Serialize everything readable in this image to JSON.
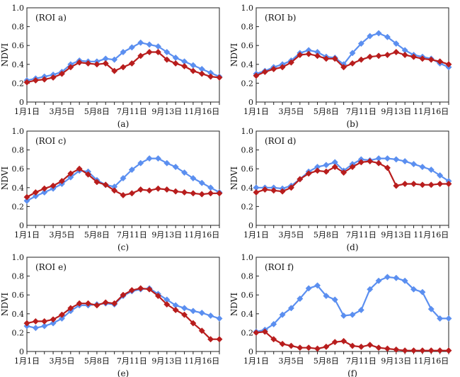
{
  "chart_data": [
    {
      "type": "line",
      "panel": "(ROI a)",
      "caption": "(a)",
      "ylabel": "NDVI",
      "ylim": [
        0,
        1.0
      ],
      "yticks": [
        "0",
        "0.2",
        "0.4",
        "0.6",
        "0.8",
        "1.0"
      ],
      "xlim": [
        1,
        23
      ],
      "xtick_labels": [
        "1月1日",
        "3月5日",
        "5月8日",
        "7月11日",
        "9月13日",
        "11月16日"
      ],
      "xtick_positions": [
        1,
        5,
        9,
        13,
        17,
        21
      ],
      "series": [
        {
          "color": "#5b8ff0",
          "x": [
            1,
            2,
            3,
            4,
            5,
            6,
            7,
            8,
            9,
            10,
            11,
            12,
            13,
            14,
            15,
            16,
            17,
            18,
            19,
            20,
            21,
            22,
            23
          ],
          "values": [
            0.23,
            0.25,
            0.27,
            0.29,
            0.32,
            0.4,
            0.44,
            0.43,
            0.43,
            0.46,
            0.45,
            0.53,
            0.58,
            0.63,
            0.61,
            0.59,
            0.53,
            0.47,
            0.43,
            0.39,
            0.35,
            0.31,
            0.27
          ]
        },
        {
          "color": "#b81d1d",
          "x": [
            1,
            2,
            3,
            4,
            5,
            6,
            7,
            8,
            9,
            10,
            11,
            12,
            13,
            14,
            15,
            16,
            17,
            18,
            19,
            20,
            21,
            22,
            23
          ],
          "values": [
            0.21,
            0.23,
            0.24,
            0.26,
            0.3,
            0.37,
            0.42,
            0.41,
            0.4,
            0.41,
            0.33,
            0.37,
            0.41,
            0.49,
            0.53,
            0.53,
            0.45,
            0.41,
            0.38,
            0.33,
            0.3,
            0.27,
            0.26
          ]
        }
      ]
    },
    {
      "type": "line",
      "panel": "(ROI b)",
      "caption": "(b)",
      "ylabel": "NDVI",
      "ylim": [
        0,
        1.0
      ],
      "yticks": [
        "0",
        "0.2",
        "0.4",
        "0.6",
        "0.8",
        "1.0"
      ],
      "xlim": [
        1,
        23
      ],
      "xtick_labels": [
        "1月1日",
        "3月5日",
        "5月8日",
        "7月11日",
        "9月13日",
        "11月16日"
      ],
      "xtick_positions": [
        1,
        5,
        9,
        13,
        17,
        21
      ],
      "series": [
        {
          "color": "#5b8ff0",
          "x": [
            1,
            2,
            3,
            4,
            5,
            6,
            7,
            8,
            9,
            10,
            11,
            12,
            13,
            14,
            15,
            16,
            17,
            18,
            19,
            20,
            21,
            22,
            23
          ],
          "values": [
            0.3,
            0.33,
            0.37,
            0.4,
            0.44,
            0.52,
            0.55,
            0.53,
            0.48,
            0.47,
            0.4,
            0.52,
            0.62,
            0.7,
            0.73,
            0.69,
            0.62,
            0.55,
            0.5,
            0.48,
            0.46,
            0.41,
            0.37
          ]
        },
        {
          "color": "#b81d1d",
          "x": [
            1,
            2,
            3,
            4,
            5,
            6,
            7,
            8,
            9,
            10,
            11,
            12,
            13,
            14,
            15,
            16,
            17,
            18,
            19,
            20,
            21,
            22,
            23
          ],
          "values": [
            0.28,
            0.32,
            0.35,
            0.37,
            0.42,
            0.5,
            0.51,
            0.49,
            0.46,
            0.46,
            0.37,
            0.41,
            0.45,
            0.48,
            0.49,
            0.5,
            0.53,
            0.5,
            0.48,
            0.46,
            0.45,
            0.43,
            0.4
          ]
        }
      ]
    },
    {
      "type": "line",
      "panel": "(ROI c)",
      "caption": "(c)",
      "ylabel": "NDVI",
      "ylim": [
        0,
        1.0
      ],
      "yticks": [
        "0",
        "0.2",
        "0.4",
        "0.6",
        "0.8",
        "1.0"
      ],
      "xlim": [
        1,
        23
      ],
      "xtick_labels": [
        "1月1日",
        "3月5日",
        "5月8日",
        "7月11日",
        "9月13日",
        "11月16日"
      ],
      "xtick_positions": [
        1,
        5,
        9,
        13,
        17,
        21
      ],
      "series": [
        {
          "color": "#5b8ff0",
          "x": [
            1,
            2,
            3,
            4,
            5,
            6,
            7,
            8,
            9,
            10,
            11,
            12,
            13,
            14,
            15,
            16,
            17,
            18,
            19,
            20,
            21,
            22,
            23
          ],
          "values": [
            0.26,
            0.31,
            0.35,
            0.39,
            0.44,
            0.51,
            0.58,
            0.57,
            0.48,
            0.43,
            0.41,
            0.5,
            0.59,
            0.66,
            0.71,
            0.71,
            0.66,
            0.62,
            0.56,
            0.5,
            0.45,
            0.4,
            0.35
          ]
        },
        {
          "color": "#b81d1d",
          "x": [
            1,
            2,
            3,
            4,
            5,
            6,
            7,
            8,
            9,
            10,
            11,
            12,
            13,
            14,
            15,
            16,
            17,
            18,
            19,
            20,
            21,
            22,
            23
          ],
          "values": [
            0.3,
            0.35,
            0.39,
            0.42,
            0.47,
            0.55,
            0.6,
            0.54,
            0.46,
            0.43,
            0.37,
            0.32,
            0.34,
            0.38,
            0.37,
            0.39,
            0.38,
            0.36,
            0.35,
            0.34,
            0.33,
            0.34,
            0.34
          ]
        }
      ]
    },
    {
      "type": "line",
      "panel": "(ROI d)",
      "caption": "(d)",
      "ylabel": "NDVI",
      "ylim": [
        0,
        1.0
      ],
      "yticks": [
        "0",
        "0.2",
        "0.4",
        "0.6",
        "0.8",
        "1.0"
      ],
      "xlim": [
        1,
        23
      ],
      "xtick_labels": [
        "1月1日",
        "3月5日",
        "5月8日",
        "7月11日",
        "9月13日",
        "11月16日"
      ],
      "xtick_positions": [
        1,
        5,
        9,
        13,
        17,
        21
      ],
      "series": [
        {
          "color": "#5b8ff0",
          "x": [
            1,
            2,
            3,
            4,
            5,
            6,
            7,
            8,
            9,
            10,
            11,
            12,
            13,
            14,
            15,
            16,
            17,
            18,
            19,
            20,
            21,
            22,
            23
          ],
          "values": [
            0.4,
            0.4,
            0.4,
            0.39,
            0.42,
            0.49,
            0.57,
            0.62,
            0.64,
            0.67,
            0.58,
            0.65,
            0.7,
            0.69,
            0.71,
            0.71,
            0.7,
            0.68,
            0.65,
            0.62,
            0.59,
            0.53,
            0.47
          ]
        },
        {
          "color": "#b81d1d",
          "x": [
            1,
            2,
            3,
            4,
            5,
            6,
            7,
            8,
            9,
            10,
            11,
            12,
            13,
            14,
            15,
            16,
            17,
            18,
            19,
            20,
            21,
            22,
            23
          ],
          "values": [
            0.35,
            0.38,
            0.37,
            0.36,
            0.4,
            0.49,
            0.55,
            0.58,
            0.57,
            0.62,
            0.56,
            0.62,
            0.67,
            0.68,
            0.66,
            0.61,
            0.42,
            0.44,
            0.44,
            0.43,
            0.43,
            0.44,
            0.44
          ]
        }
      ]
    },
    {
      "type": "line",
      "panel": "(ROI e)",
      "caption": "(e)",
      "ylabel": "NDVI",
      "ylim": [
        0,
        1.0
      ],
      "yticks": [
        "0",
        "0.2",
        "0.4",
        "0.6",
        "0.8",
        "1.0"
      ],
      "xlim": [
        1,
        23
      ],
      "xtick_labels": [
        "1月1日",
        "3月5日",
        "5月8日",
        "7月11日",
        "9月13日",
        "11月16日"
      ],
      "xtick_positions": [
        1,
        5,
        9,
        13,
        17,
        21
      ],
      "series": [
        {
          "color": "#5b8ff0",
          "x": [
            1,
            2,
            3,
            4,
            5,
            6,
            7,
            8,
            9,
            10,
            11,
            12,
            13,
            14,
            15,
            16,
            17,
            18,
            19,
            20,
            21,
            22,
            23
          ],
          "values": [
            0.27,
            0.25,
            0.27,
            0.3,
            0.35,
            0.43,
            0.49,
            0.49,
            0.5,
            0.51,
            0.5,
            0.59,
            0.64,
            0.66,
            0.67,
            0.61,
            0.55,
            0.49,
            0.46,
            0.43,
            0.41,
            0.38,
            0.35
          ]
        },
        {
          "color": "#b81d1d",
          "x": [
            1,
            2,
            3,
            4,
            5,
            6,
            7,
            8,
            9,
            10,
            11,
            12,
            13,
            14,
            15,
            16,
            17,
            18,
            19,
            20,
            21,
            22,
            23
          ],
          "values": [
            0.3,
            0.32,
            0.32,
            0.34,
            0.39,
            0.46,
            0.51,
            0.51,
            0.49,
            0.52,
            0.51,
            0.6,
            0.65,
            0.67,
            0.66,
            0.59,
            0.5,
            0.44,
            0.39,
            0.3,
            0.22,
            0.13,
            0.13
          ]
        }
      ]
    },
    {
      "type": "line",
      "panel": "(ROI f)",
      "caption": "(f)",
      "ylabel": "NDVI",
      "ylim": [
        0,
        1.0
      ],
      "yticks": [
        "0",
        "0.2",
        "0.4",
        "0.6",
        "0.8",
        "1.0"
      ],
      "xlim": [
        1,
        23
      ],
      "xtick_labels": [
        "1月1日",
        "3月5日",
        "5月8日",
        "7月11日",
        "9月13日",
        "11月16日"
      ],
      "xtick_positions": [
        1,
        5,
        9,
        13,
        17,
        21
      ],
      "series": [
        {
          "color": "#5b8ff0",
          "x": [
            1,
            2,
            3,
            4,
            5,
            6,
            7,
            8,
            9,
            10,
            11,
            12,
            13,
            14,
            15,
            16,
            17,
            18,
            19,
            20,
            21,
            22,
            23
          ],
          "values": [
            0.21,
            0.23,
            0.29,
            0.39,
            0.46,
            0.56,
            0.67,
            0.7,
            0.59,
            0.55,
            0.38,
            0.39,
            0.44,
            0.66,
            0.75,
            0.79,
            0.78,
            0.75,
            0.66,
            0.63,
            0.45,
            0.35,
            0.35
          ]
        },
        {
          "color": "#b81d1d",
          "x": [
            1,
            2,
            3,
            4,
            5,
            6,
            7,
            8,
            9,
            10,
            11,
            12,
            13,
            14,
            15,
            16,
            17,
            18,
            19,
            20,
            21,
            22,
            23
          ],
          "values": [
            0.2,
            0.21,
            0.13,
            0.08,
            0.06,
            0.04,
            0.04,
            0.03,
            0.05,
            0.1,
            0.11,
            0.06,
            0.05,
            0.07,
            0.04,
            0.03,
            0.02,
            0.01,
            0.01,
            0.01,
            0.01,
            0.01,
            0.01
          ]
        }
      ]
    }
  ]
}
